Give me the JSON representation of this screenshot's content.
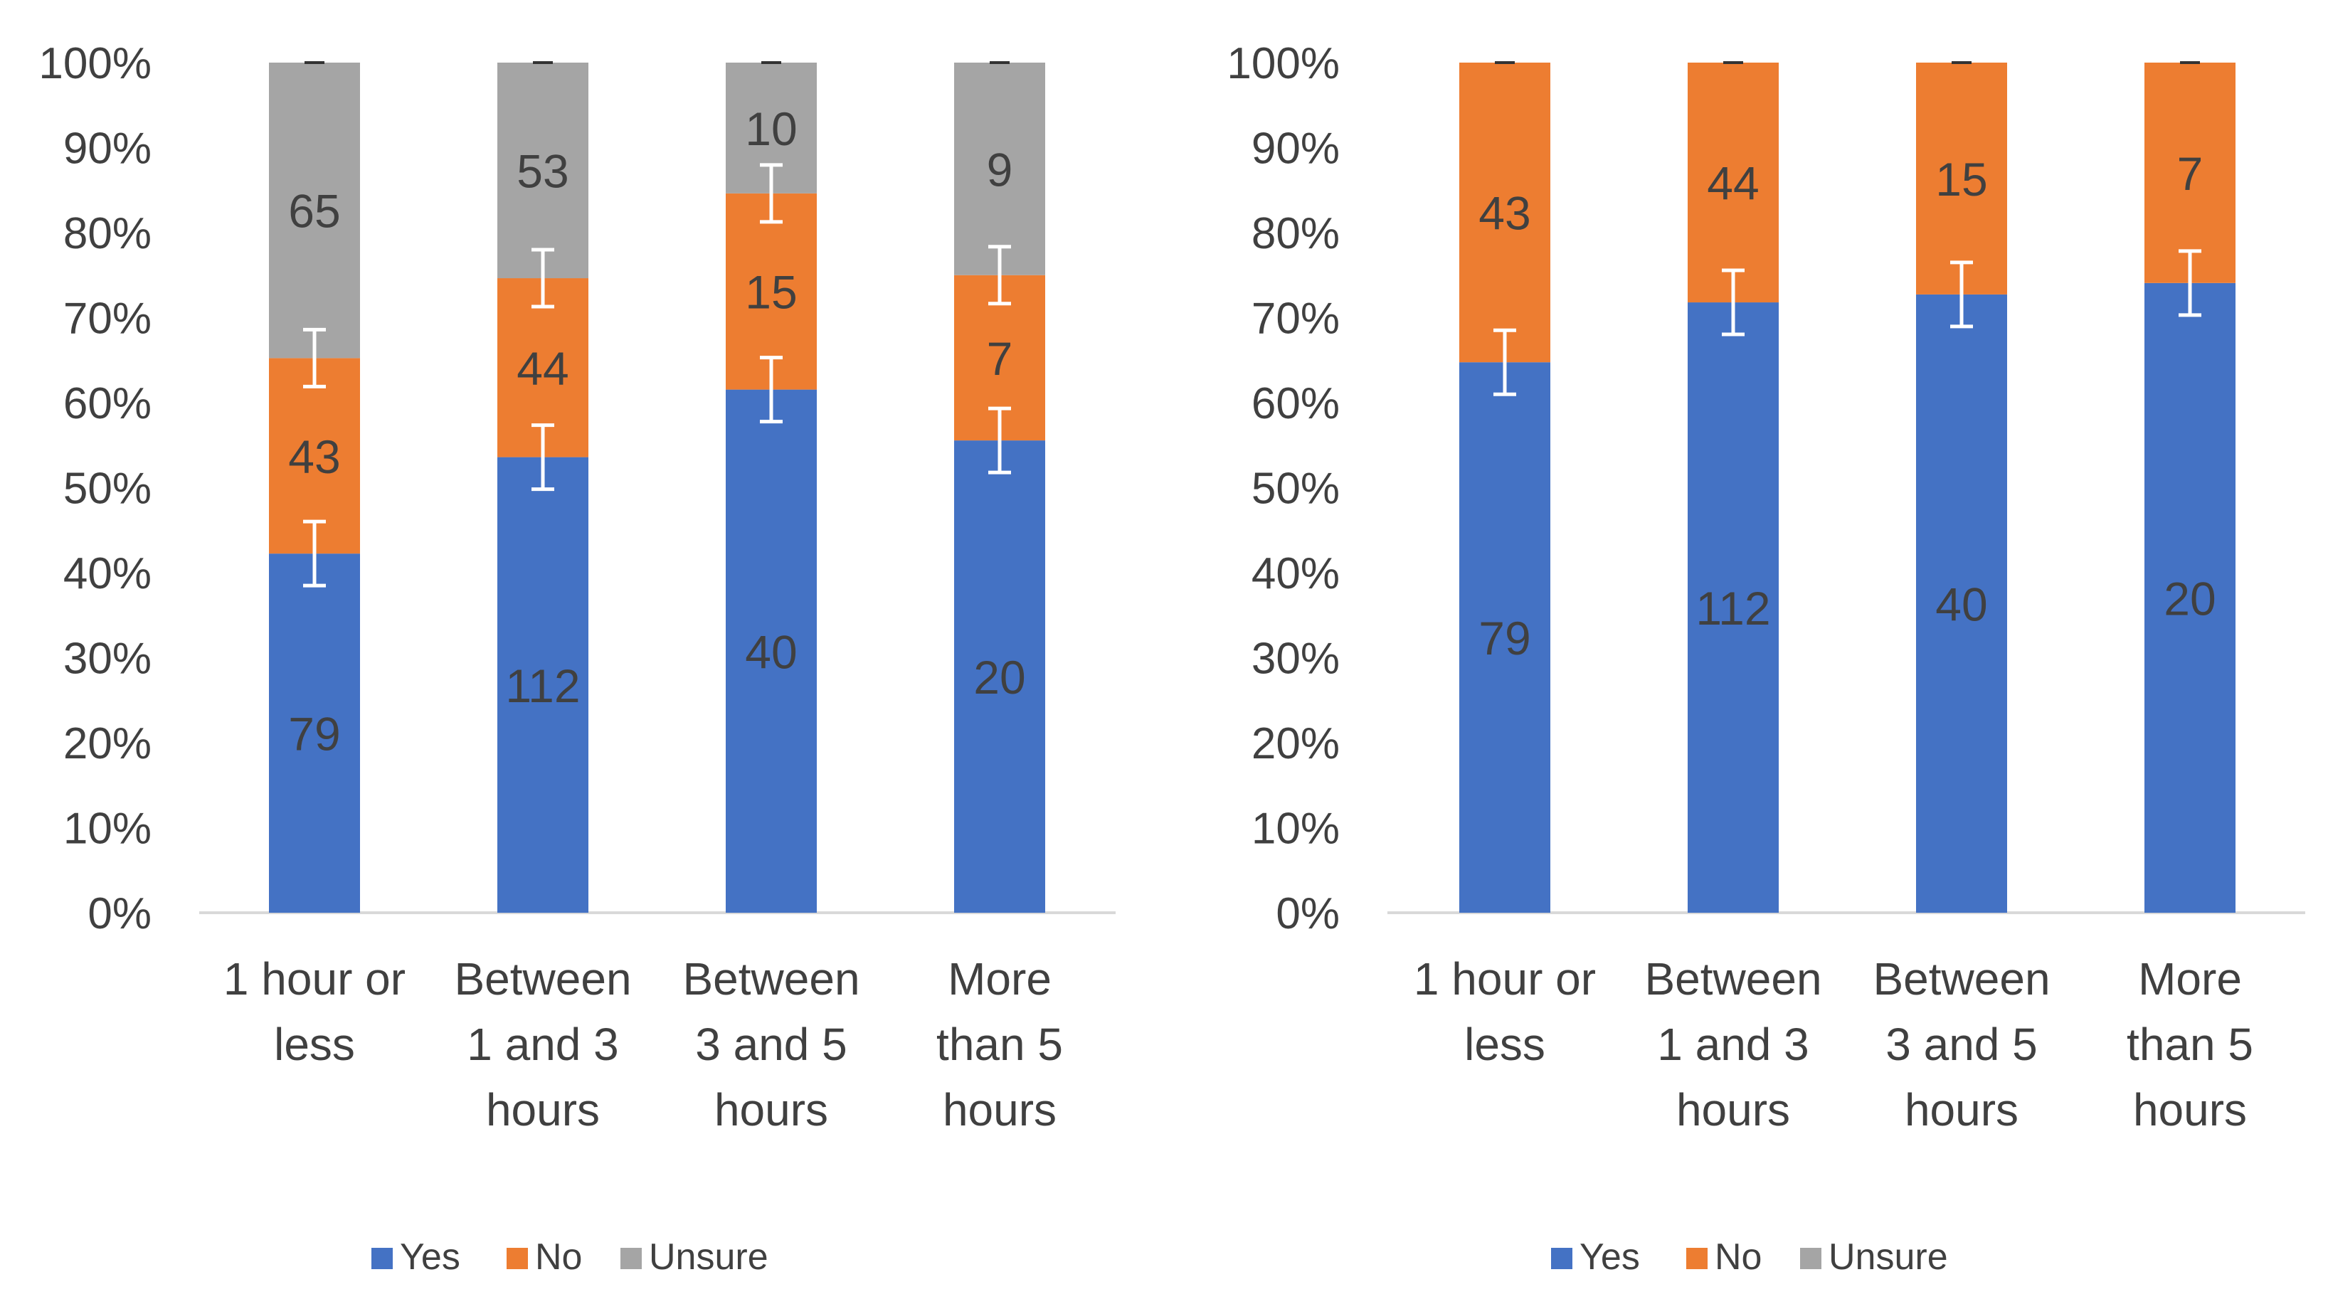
{
  "chart_data": [
    {
      "type": "bar",
      "stacked": "percent",
      "categories": [
        [
          "1 hour or",
          "less"
        ],
        [
          "Between",
          "1 and 3",
          "hours"
        ],
        [
          "Between",
          "3 and 5",
          "hours"
        ],
        [
          "More",
          "than 5",
          "hours"
        ]
      ],
      "ylim": [
        0,
        100
      ],
      "yticks": [
        "0%",
        "10%",
        "20%",
        "30%",
        "40%",
        "50%",
        "60%",
        "70%",
        "80%",
        "90%",
        "100%"
      ],
      "series": [
        {
          "name": "Yes",
          "color": "#4472C4",
          "counts": [
            79,
            112,
            40,
            20
          ],
          "labels": [
            "79",
            "112",
            "40",
            "20"
          ]
        },
        {
          "name": "No",
          "color": "#ED7D31",
          "counts": [
            43,
            44,
            15,
            7
          ],
          "labels": [
            "43",
            "44",
            "15",
            "7"
          ]
        },
        {
          "name": "Unsure",
          "color": "#A5A5A5",
          "counts": [
            65,
            53,
            10,
            9
          ],
          "labels": [
            "65",
            "53",
            "10",
            "9"
          ]
        }
      ],
      "legend": {
        "position": "bottom",
        "items": [
          "Yes",
          "No",
          "Unsure"
        ]
      },
      "error_bars": true
    },
    {
      "type": "bar",
      "stacked": "percent",
      "categories": [
        [
          "1 hour or",
          "less"
        ],
        [
          "Between",
          "1 and 3",
          "hours"
        ],
        [
          "Between",
          "3 and 5",
          "hours"
        ],
        [
          "More",
          "than 5",
          "hours"
        ]
      ],
      "ylim": [
        0,
        100
      ],
      "yticks": [
        "0%",
        "10%",
        "20%",
        "30%",
        "40%",
        "50%",
        "60%",
        "70%",
        "80%",
        "90%",
        "100%"
      ],
      "series": [
        {
          "name": "Yes",
          "color": "#4472C4",
          "counts": [
            79,
            112,
            40,
            20
          ],
          "labels": [
            "79",
            "112",
            "40",
            "20"
          ]
        },
        {
          "name": "No",
          "color": "#ED7D31",
          "counts": [
            43,
            44,
            15,
            7
          ],
          "labels": [
            "43",
            "44",
            "15",
            "7"
          ]
        },
        {
          "name": "Unsure",
          "color": "#A5A5A5",
          "counts": [
            0,
            0,
            0,
            0
          ],
          "labels": []
        }
      ],
      "legend": {
        "position": "bottom",
        "items": [
          "Yes",
          "No",
          "Unsure"
        ]
      },
      "error_bars": true
    }
  ]
}
